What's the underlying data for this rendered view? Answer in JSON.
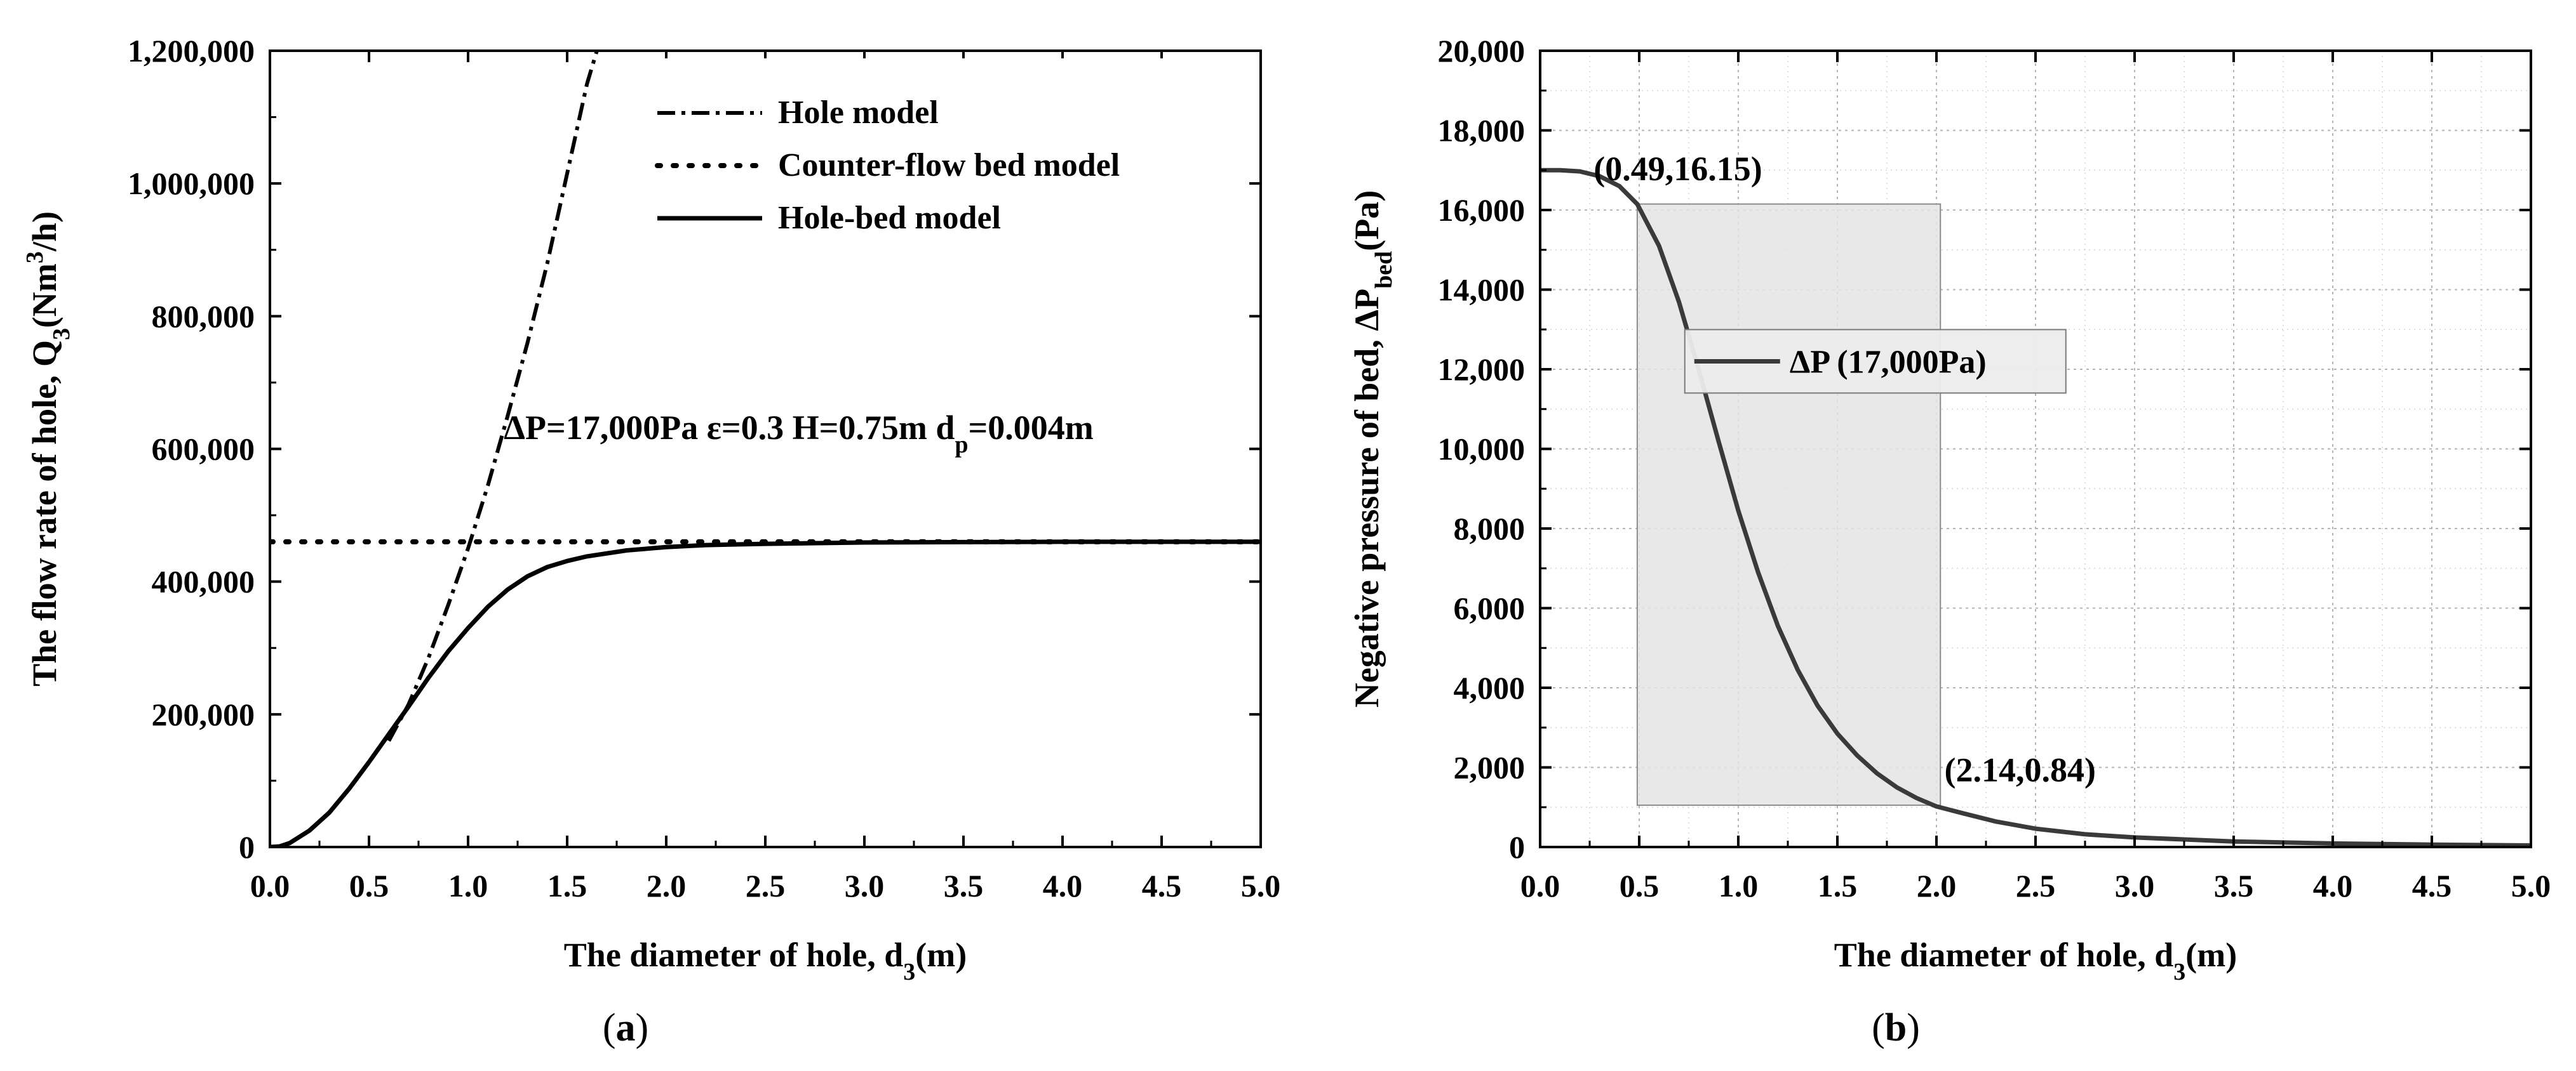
{
  "chart_data": [
    {
      "type": "line",
      "panel_label": "a",
      "xlabel": "The diameter of hole, d",
      "xlabel_sub": "3",
      "xlabel_tail": "(m)",
      "ylabel": "The flow rate of hole, Q",
      "ylabel_sub": "3",
      "ylabel_mid": "(Nm",
      "ylabel_sup": "3",
      "ylabel_tail": "/h)",
      "xlim": [
        0,
        5
      ],
      "ylim": [
        0,
        1200000
      ],
      "xticks": [
        0,
        0.5,
        1,
        1.5,
        2,
        2.5,
        3,
        3.5,
        4,
        4.5,
        5
      ],
      "xtick_labels": [
        "0.0",
        "0.5",
        "1.0",
        "1.5",
        "2.0",
        "2.5",
        "3.0",
        "3.5",
        "4.0",
        "4.5",
        "5.0"
      ],
      "yticks": [
        0,
        200000,
        400000,
        600000,
        800000,
        1000000,
        1200000
      ],
      "ytick_labels": [
        "0",
        "200,000",
        "400,000",
        "600,000",
        "800,000",
        "1,000,000",
        "1,200,000"
      ],
      "legend_position": "top-right",
      "annotation": {
        "main": "ΔP=17,000Pa  ε=0.3   H=0.75m d",
        "sub": "p",
        "tail": "=0.004m",
        "x": 1.18,
        "y": 615000
      },
      "series": [
        {
          "name": "Hole model",
          "style": "dash-dot",
          "x": [
            0.6,
            0.7,
            0.8,
            0.9,
            1.0,
            1.1,
            1.2,
            1.3,
            1.4,
            1.5,
            1.6,
            1.65
          ],
          "values": [
            160000,
            215000,
            285000,
            365000,
            450000,
            545000,
            650000,
            760000,
            880000,
            1015000,
            1150000,
            1200000
          ]
        },
        {
          "name": "Counter-flow bed model",
          "style": "dotted",
          "x": [
            0,
            5
          ],
          "values": [
            460000,
            460000
          ]
        },
        {
          "name": "Hole-bed model",
          "style": "solid",
          "x": [
            0,
            0.05,
            0.1,
            0.2,
            0.3,
            0.4,
            0.5,
            0.6,
            0.7,
            0.8,
            0.9,
            1.0,
            1.1,
            1.2,
            1.3,
            1.4,
            1.5,
            1.6,
            1.8,
            2.0,
            2.2,
            2.5,
            3.0,
            3.5,
            4.0,
            4.5,
            5.0
          ],
          "values": [
            0,
            1000,
            6000,
            25000,
            52000,
            88000,
            128000,
            170000,
            212000,
            255000,
            295000,
            330000,
            362000,
            388000,
            408000,
            422000,
            431000,
            438000,
            447000,
            452000,
            455000,
            457000,
            459000,
            459500,
            460000,
            460000,
            460000
          ]
        }
      ]
    },
    {
      "type": "line",
      "panel_label": "b",
      "xlabel": "The diameter of hole, d",
      "xlabel_sub": "3",
      "xlabel_tail": "(m)",
      "ylabel": "Negative pressure of bed, ΔP",
      "ylabel_sub": "bed",
      "ylabel_tail": "(Pa)",
      "xlim": [
        0,
        5
      ],
      "ylim": [
        0,
        20000
      ],
      "grid": true,
      "xticks": [
        0,
        0.5,
        1,
        1.5,
        2,
        2.5,
        3,
        3.5,
        4,
        4.5,
        5
      ],
      "xtick_labels": [
        "0.0",
        "0.5",
        "1.0",
        "1.5",
        "2.0",
        "2.5",
        "3.0",
        "3.5",
        "4.0",
        "4.5",
        "5.0"
      ],
      "yticks": [
        0,
        2000,
        4000,
        6000,
        8000,
        10000,
        12000,
        14000,
        16000,
        18000,
        20000
      ],
      "ytick_labels": [
        "0",
        "2,000",
        "4,000",
        "6,000",
        "8,000",
        "10,000",
        "12,000",
        "14,000",
        "16,000",
        "18,000",
        "20,000"
      ],
      "legend_position": "center",
      "shaded_region": {
        "x": [
          0.49,
          2.02
        ],
        "y": [
          1050,
          16150
        ]
      },
      "annotations": [
        {
          "text": "(0.49,16.15)",
          "x": 0.27,
          "y": 16750
        },
        {
          "text": "(2.14,0.84)",
          "x": 2.04,
          "y": 1650
        }
      ],
      "series": [
        {
          "name": "ΔP (17,000Pa)",
          "style": "solid",
          "x": [
            0,
            0.1,
            0.2,
            0.3,
            0.4,
            0.49,
            0.6,
            0.7,
            0.8,
            0.9,
            1.0,
            1.1,
            1.2,
            1.3,
            1.4,
            1.5,
            1.6,
            1.7,
            1.8,
            1.9,
            2.0,
            2.14,
            2.3,
            2.5,
            2.75,
            3.0,
            3.5,
            4.0,
            4.5,
            5.0
          ],
          "values": [
            17000,
            17000,
            16970,
            16850,
            16600,
            16150,
            15100,
            13700,
            12000,
            10200,
            8450,
            6900,
            5550,
            4450,
            3550,
            2850,
            2300,
            1850,
            1500,
            1230,
            1020,
            840,
            640,
            460,
            320,
            240,
            140,
            90,
            60,
            40
          ]
        }
      ]
    }
  ]
}
